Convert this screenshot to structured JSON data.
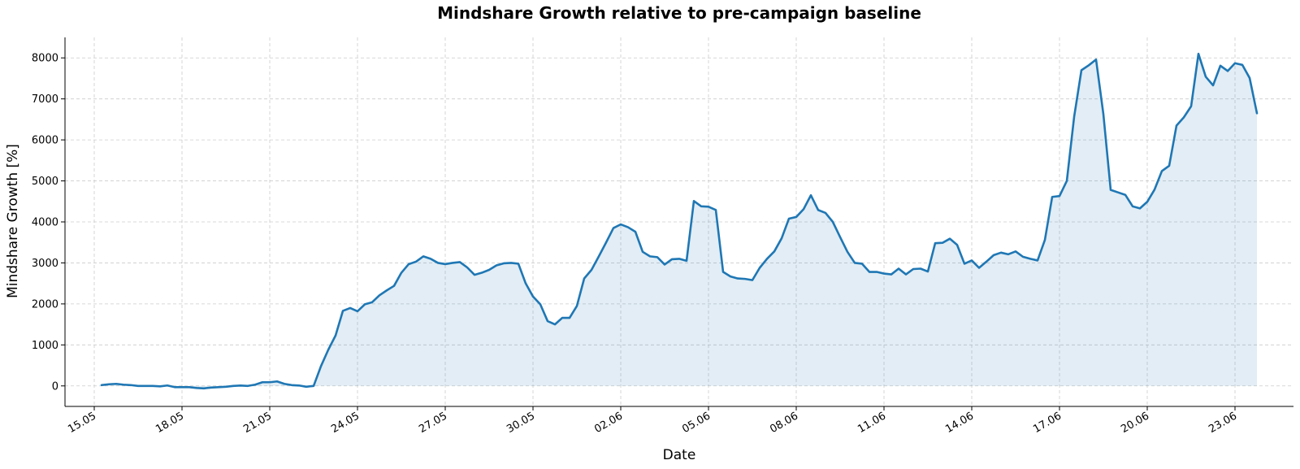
{
  "chart_data": {
    "type": "area",
    "title": "Mindshare Growth relative to pre-campaign baseline",
    "xlabel": "Date",
    "ylabel": "Mindshare Growth [%]",
    "ylim": [
      -500,
      8500
    ],
    "xlim": [
      "2024-05-14",
      "2024-06-25"
    ],
    "grid": true,
    "line_color": "#1f77b4",
    "fill_color": "#1f77b4",
    "x_ticks": [
      "15.05",
      "18.05",
      "21.05",
      "24.05",
      "27.05",
      "30.05",
      "02.06",
      "05.06",
      "08.06",
      "11.06",
      "14.06",
      "17.06",
      "20.06",
      "23.06"
    ],
    "x_tick_dates": [
      "2024-05-15",
      "2024-05-18",
      "2024-05-21",
      "2024-05-24",
      "2024-05-27",
      "2024-05-30",
      "2024-06-02",
      "2024-06-05",
      "2024-06-08",
      "2024-06-11",
      "2024-06-14",
      "2024-06-17",
      "2024-06-20",
      "2024-06-23"
    ],
    "y_ticks": [
      0,
      1000,
      2000,
      3000,
      4000,
      5000,
      6000,
      7000,
      8000
    ],
    "series": [
      {
        "x": [
          "2024-05-15 06:00",
          "2024-05-15 12:00",
          "2024-05-15 18:00",
          "2024-05-16 00:00",
          "2024-05-16 06:00",
          "2024-05-16 12:00",
          "2024-05-16 18:00",
          "2024-05-17 00:00",
          "2024-05-17 06:00",
          "2024-05-17 12:00",
          "2024-05-17 18:00",
          "2024-05-18 00:00",
          "2024-05-18 06:00",
          "2024-05-18 12:00",
          "2024-05-18 18:00",
          "2024-05-19 00:00",
          "2024-05-19 06:00",
          "2024-05-19 12:00",
          "2024-05-19 18:00",
          "2024-05-20 00:00",
          "2024-05-20 06:00",
          "2024-05-20 12:00",
          "2024-05-20 18:00",
          "2024-05-21 00:00",
          "2024-05-21 06:00",
          "2024-05-21 12:00",
          "2024-05-21 18:00",
          "2024-05-22 00:00",
          "2024-05-22 06:00",
          "2024-05-22 12:00",
          "2024-05-22 18:00",
          "2024-05-23 00:00",
          "2024-05-23 06:00",
          "2024-05-23 12:00",
          "2024-05-23 18:00",
          "2024-05-24 00:00",
          "2024-05-24 06:00",
          "2024-05-24 12:00",
          "2024-05-24 18:00",
          "2024-05-25 00:00",
          "2024-05-25 06:00",
          "2024-05-25 12:00",
          "2024-05-25 18:00",
          "2024-05-26 00:00",
          "2024-05-26 06:00",
          "2024-05-26 12:00",
          "2024-05-26 18:00",
          "2024-05-27 00:00",
          "2024-05-27 06:00",
          "2024-05-27 12:00",
          "2024-05-27 18:00",
          "2024-05-28 00:00",
          "2024-05-28 06:00",
          "2024-05-28 12:00",
          "2024-05-28 18:00",
          "2024-05-29 00:00",
          "2024-05-29 06:00",
          "2024-05-29 12:00",
          "2024-05-29 18:00",
          "2024-05-30 00:00",
          "2024-05-30 06:00",
          "2024-05-30 12:00",
          "2024-05-30 18:00",
          "2024-05-31 00:00",
          "2024-05-31 06:00",
          "2024-05-31 12:00",
          "2024-05-31 18:00",
          "2024-06-01 00:00",
          "2024-06-01 06:00",
          "2024-06-01 12:00",
          "2024-06-01 18:00",
          "2024-06-02 00:00",
          "2024-06-02 06:00",
          "2024-06-02 12:00",
          "2024-06-02 18:00",
          "2024-06-03 00:00",
          "2024-06-03 06:00",
          "2024-06-03 12:00",
          "2024-06-03 18:00",
          "2024-06-04 00:00",
          "2024-06-04 06:00",
          "2024-06-04 12:00",
          "2024-06-04 18:00",
          "2024-06-05 00:00",
          "2024-06-05 06:00",
          "2024-06-05 12:00",
          "2024-06-05 18:00",
          "2024-06-06 00:00",
          "2024-06-06 06:00",
          "2024-06-06 12:00",
          "2024-06-06 18:00",
          "2024-06-07 00:00",
          "2024-06-07 06:00",
          "2024-06-07 12:00",
          "2024-06-07 18:00",
          "2024-06-08 00:00",
          "2024-06-08 06:00",
          "2024-06-08 12:00",
          "2024-06-08 18:00",
          "2024-06-09 00:00",
          "2024-06-09 06:00",
          "2024-06-09 12:00",
          "2024-06-09 18:00",
          "2024-06-10 00:00",
          "2024-06-10 06:00",
          "2024-06-10 12:00",
          "2024-06-10 18:00",
          "2024-06-11 00:00",
          "2024-06-11 06:00",
          "2024-06-11 12:00",
          "2024-06-11 18:00",
          "2024-06-12 00:00",
          "2024-06-12 06:00",
          "2024-06-12 12:00",
          "2024-06-12 18:00",
          "2024-06-13 00:00",
          "2024-06-13 06:00",
          "2024-06-13 12:00",
          "2024-06-13 18:00",
          "2024-06-14 00:00",
          "2024-06-14 06:00",
          "2024-06-14 12:00",
          "2024-06-14 18:00",
          "2024-06-15 00:00",
          "2024-06-15 06:00",
          "2024-06-15 12:00",
          "2024-06-15 18:00",
          "2024-06-16 00:00",
          "2024-06-16 06:00",
          "2024-06-16 12:00",
          "2024-06-16 18:00",
          "2024-06-17 00:00",
          "2024-06-17 06:00",
          "2024-06-17 12:00",
          "2024-06-17 18:00",
          "2024-06-18 00:00",
          "2024-06-18 06:00",
          "2024-06-18 12:00",
          "2024-06-18 18:00",
          "2024-06-19 00:00",
          "2024-06-19 06:00",
          "2024-06-19 12:00",
          "2024-06-19 18:00",
          "2024-06-20 00:00",
          "2024-06-20 06:00",
          "2024-06-20 12:00",
          "2024-06-20 18:00",
          "2024-06-21 00:00",
          "2024-06-21 06:00",
          "2024-06-21 12:00",
          "2024-06-21 18:00",
          "2024-06-22 00:00",
          "2024-06-22 06:00",
          "2024-06-22 12:00",
          "2024-06-22 18:00",
          "2024-06-23 00:00",
          "2024-06-23 06:00",
          "2024-06-23 12:00",
          "2024-06-23 18:00"
        ],
        "y": [
          20,
          40,
          50,
          30,
          20,
          0,
          0,
          0,
          -10,
          10,
          -30,
          -30,
          -30,
          -50,
          -60,
          -40,
          -30,
          -20,
          0,
          10,
          0,
          30,
          90,
          90,
          110,
          50,
          20,
          10,
          -20,
          0,
          480,
          880,
          1230,
          1830,
          1900,
          1820,
          1990,
          2040,
          2210,
          2330,
          2440,
          2760,
          2970,
          3030,
          3160,
          3100,
          3000,
          2970,
          3000,
          3020,
          2890,
          2710,
          2760,
          2830,
          2940,
          2990,
          3000,
          2980,
          2500,
          2180,
          1990,
          1580,
          1500,
          1660,
          1660,
          1950,
          2620,
          2830,
          3160,
          3500,
          3850,
          3940,
          3870,
          3760,
          3270,
          3160,
          3140,
          2960,
          3090,
          3100,
          3050,
          4510,
          4380,
          4370,
          4290,
          2780,
          2670,
          2620,
          2610,
          2580,
          2880,
          3100,
          3280,
          3600,
          4080,
          4120,
          4310,
          4650,
          4290,
          4220,
          4000,
          3630,
          3270,
          3000,
          2980,
          2780,
          2780,
          2740,
          2720,
          2860,
          2720,
          2850,
          2860,
          2790,
          3480,
          3490,
          3590,
          3440,
          2980,
          3060,
          2880,
          3030,
          3190,
          3250,
          3210,
          3280,
          3150,
          3100,
          3060,
          3560,
          4610,
          4630,
          5000,
          6560,
          7700,
          7820,
          7960,
          6630,
          4780,
          4720,
          4660,
          4380,
          4330,
          4490,
          4790,
          5240,
          5370,
          6350,
          6550,
          6820,
          8100,
          7540,
          7330,
          7810,
          7680,
          7870,
          7830,
          7510,
          6650
        ]
      }
    ]
  }
}
